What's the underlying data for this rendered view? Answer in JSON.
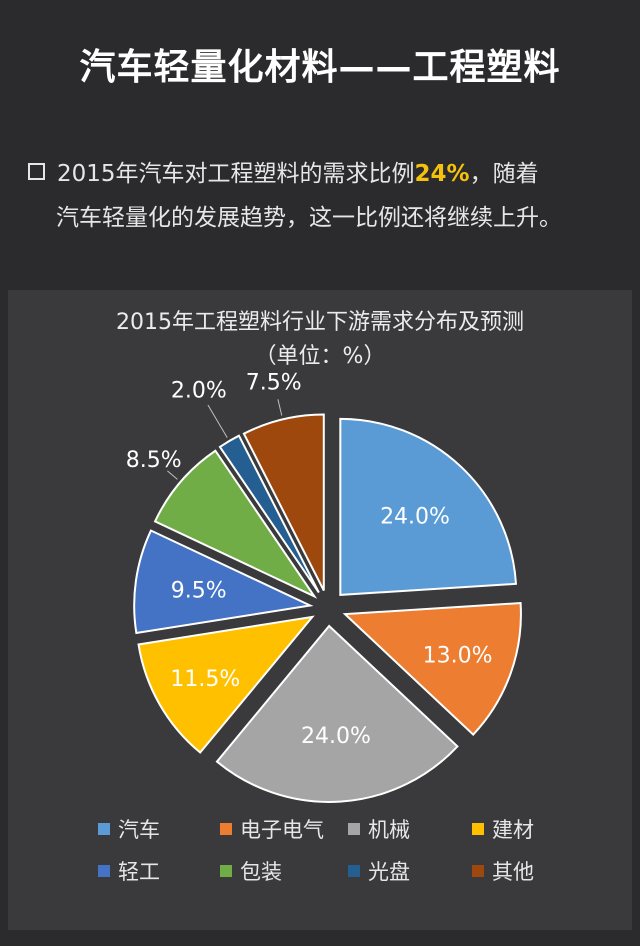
{
  "header": {
    "title": "汽车轻量化材料——工程塑料"
  },
  "intro": {
    "pre": "2015年汽车对工程塑料的需求比例",
    "highlight": "24%",
    "post": "，随着",
    "line2": "汽车轻量化的发展趋势，这一比例还将继续上升。"
  },
  "chart_data": {
    "type": "pie",
    "title": "2015年工程塑料行业下游需求分布及预测",
    "subtitle": "（单位：%）",
    "categories": [
      "汽车",
      "电子电气",
      "机械",
      "建材",
      "轻工",
      "包装",
      "光盘",
      "其他"
    ],
    "values": [
      24.0,
      13.0,
      24.0,
      11.5,
      9.5,
      8.5,
      2.0,
      7.5
    ],
    "labels": [
      "24.0%",
      "13.0%",
      "24.0%",
      "11.5%",
      "9.5%",
      "8.5%",
      "2.0%",
      "7.5%"
    ],
    "colors": [
      "#5b9bd5",
      "#ed7d31",
      "#a5a5a5",
      "#ffc000",
      "#4472c4",
      "#70ad47",
      "#255e91",
      "#9e480e"
    ],
    "exploded": true,
    "legend_position": "bottom"
  }
}
